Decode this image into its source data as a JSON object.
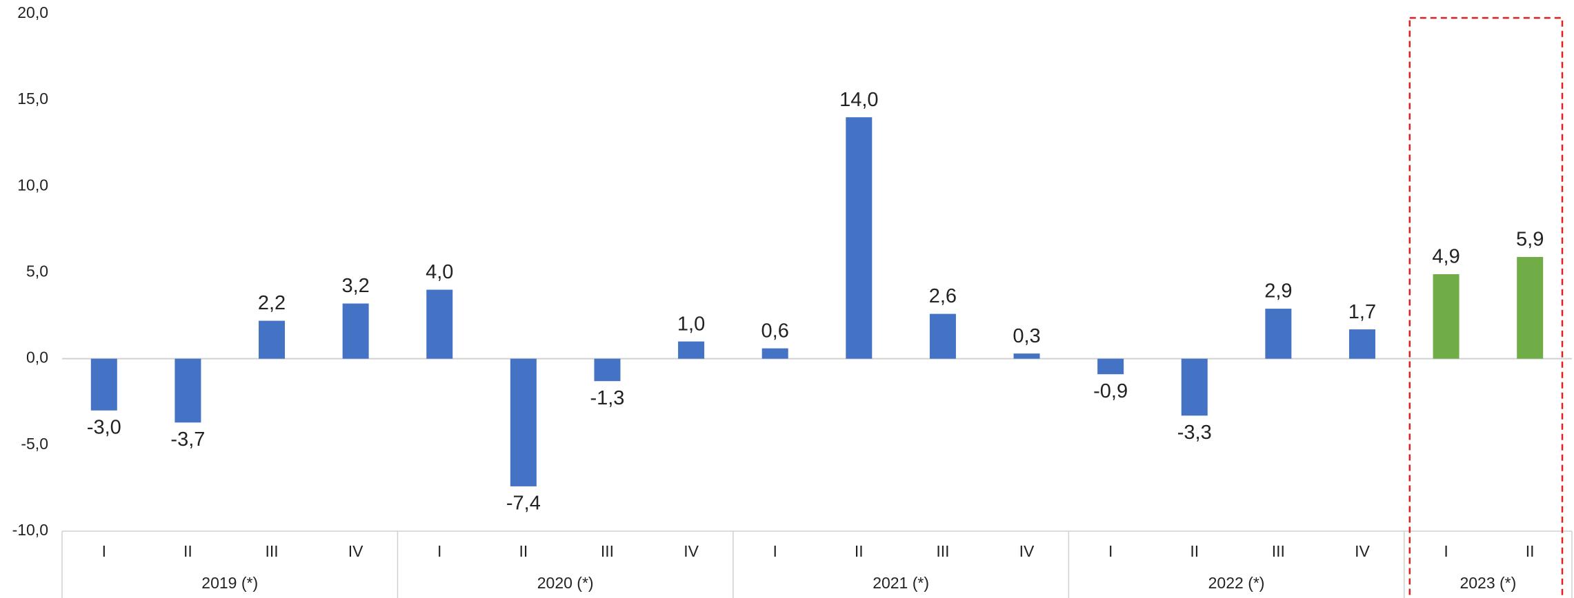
{
  "chart_data": {
    "type": "bar",
    "categories": [
      "I",
      "II",
      "III",
      "IV",
      "I",
      "II",
      "III",
      "IV",
      "I",
      "II",
      "III",
      "IV",
      "I",
      "II",
      "III",
      "IV",
      "I",
      "II"
    ],
    "groups": [
      {
        "label": "2019 (*)",
        "size": 4
      },
      {
        "label": "2020 (*)",
        "size": 4
      },
      {
        "label": "2021 (*)",
        "size": 4
      },
      {
        "label": "2022 (*)",
        "size": 4
      },
      {
        "label": "2023 (*)",
        "size": 2
      }
    ],
    "values": [
      -3.0,
      -3.7,
      2.2,
      3.2,
      4.0,
      -7.4,
      -1.3,
      1.0,
      0.6,
      14.0,
      2.6,
      0.3,
      -0.9,
      -3.3,
      2.9,
      1.7,
      4.9,
      5.9
    ],
    "value_labels": [
      "-3,0",
      "-3,7",
      "2,2",
      "3,2",
      "4,0",
      "-7,4",
      "-1,3",
      "1,0",
      "0,6",
      "14,0",
      "2,6",
      "0,3",
      "-0,9",
      "-3,3",
      "2,9",
      "1,7",
      "4,9",
      "5,9"
    ],
    "colors": [
      "#4472c4",
      "#4472c4",
      "#4472c4",
      "#4472c4",
      "#4472c4",
      "#4472c4",
      "#4472c4",
      "#4472c4",
      "#4472c4",
      "#4472c4",
      "#4472c4",
      "#4472c4",
      "#4472c4",
      "#4472c4",
      "#4472c4",
      "#4472c4",
      "#70ad47",
      "#70ad47"
    ],
    "ylim": [
      -10,
      20
    ],
    "yticks": [
      {
        "value": -10,
        "label": "-10,0"
      },
      {
        "value": -5,
        "label": "-5,0"
      },
      {
        "value": 0,
        "label": "0,0"
      },
      {
        "value": 5,
        "label": "5,0"
      },
      {
        "value": 10,
        "label": "10,0"
      },
      {
        "value": 15,
        "label": "15,0"
      },
      {
        "value": 20,
        "label": "20,0"
      }
    ],
    "highlight_group": 4,
    "highlight_color": "#e02020"
  }
}
